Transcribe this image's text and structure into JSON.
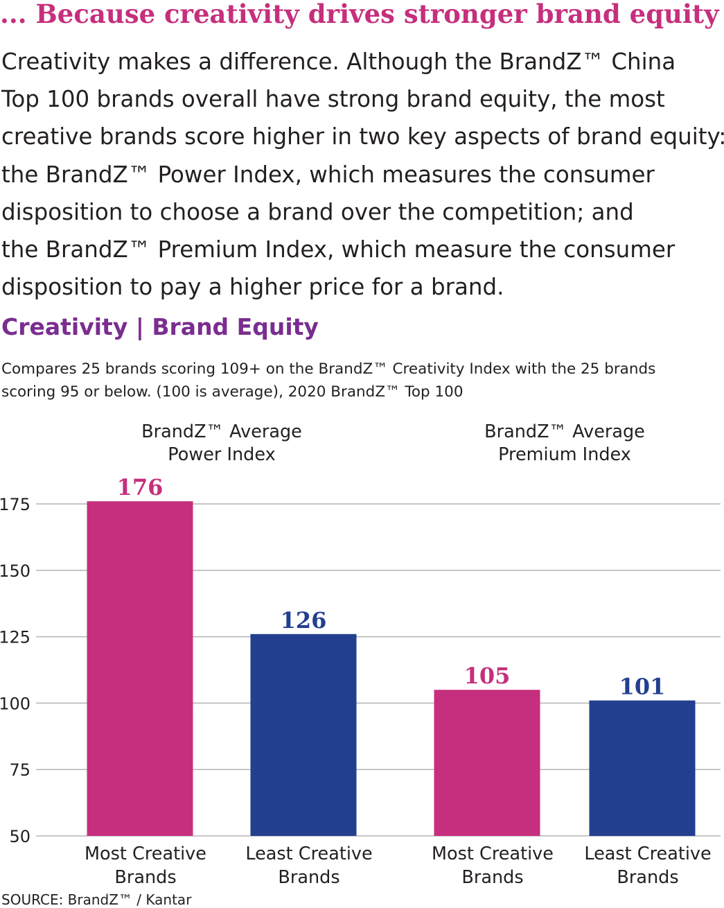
{
  "heading": "... Because creativity drives stronger brand equity",
  "body_lines": [
    "Creativity makes a difference. Although the BrandZ™ China",
    "Top 100 brands overall have strong brand equity, the most",
    "creative brands score higher in two key aspects of brand equity:",
    "the BrandZ™ Power Index, which measures the consumer",
    "disposition to choose a brand over the competition; and",
    "the BrandZ™ Premium Index, which measure the consumer",
    "disposition to pay a higher price for a brand."
  ],
  "section_title": "Creativity | Brand Equity",
  "subtitle_lines": [
    "Compares 25 brands scoring 109+ on the BrandZ™ Creativity Index with the 25 brands",
    "scoring 95 or below. (100 is average), 2020 BrandZ™ Top 100"
  ],
  "source": "SOURCE: BrandZ™ / Kantar",
  "colors": {
    "most": "#c62f7d",
    "least": "#233f8f",
    "heading": "#c62f7d",
    "section": "#7a2d8f",
    "grid": "#b3b3b3"
  },
  "chart_data": {
    "type": "bar",
    "ylim": [
      50,
      176
    ],
    "yticks": [
      50,
      75,
      100,
      125,
      150,
      175
    ],
    "grid": true,
    "groups": [
      {
        "title_lines": [
          "BrandZ™ Average",
          "Power Index"
        ],
        "bars": [
          {
            "label_lines": [
              "Most Creative",
              "Brands"
            ],
            "value": 176,
            "value_label": "176",
            "series": "most"
          },
          {
            "label_lines": [
              "Least Creative",
              "Brands"
            ],
            "value": 126,
            "value_label": "126",
            "series": "least"
          }
        ]
      },
      {
        "title_lines": [
          "BrandZ™ Average",
          "Premium Index"
        ],
        "bars": [
          {
            "label_lines": [
              "Most Creative",
              "Brands"
            ],
            "value": 105,
            "value_label": "105",
            "series": "most"
          },
          {
            "label_lines": [
              "Least Creative",
              "Brands"
            ],
            "value": 101,
            "value_label": "101",
            "series": "least"
          }
        ]
      }
    ]
  }
}
